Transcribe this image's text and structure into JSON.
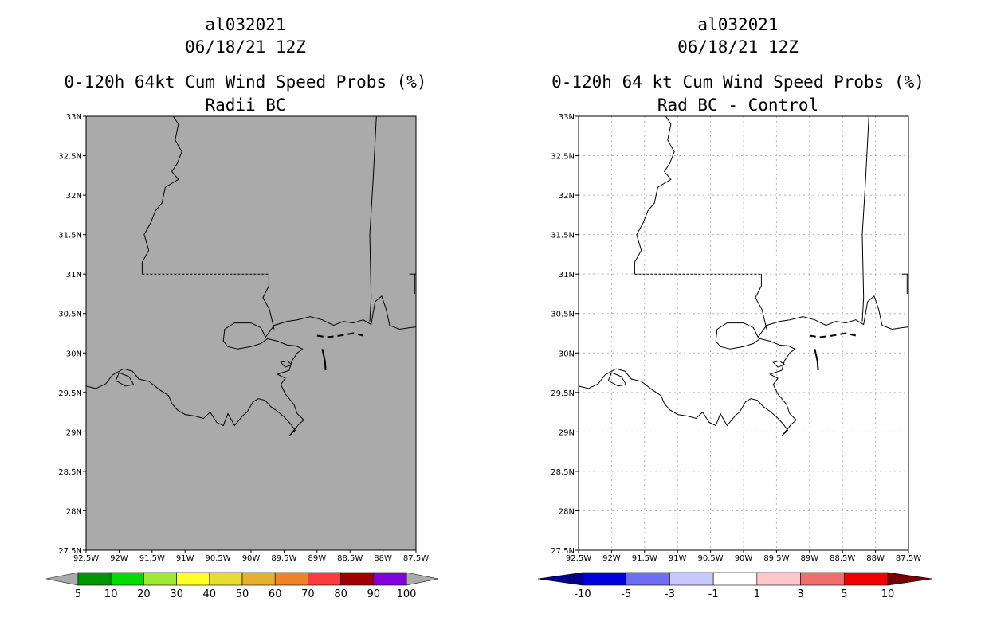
{
  "panels": [
    {
      "id": "left",
      "title_lines": [
        "al032021",
        "06/18/21 12Z",
        "0-120h 64kt Cum Wind Speed Probs (%)",
        "Radii BC"
      ],
      "fill_color": "#aaaaaa",
      "gridlines": false,
      "lat_ticks": [
        "33N",
        "32.5N",
        "32N",
        "31.5N",
        "31N",
        "30.5N",
        "30N",
        "29.5N",
        "29N",
        "28.5N",
        "28N",
        "27.5N"
      ],
      "lon_ticks": [
        "92.5W",
        "92W",
        "91.5W",
        "91W",
        "90.5W",
        "90W",
        "89.5W",
        "89W",
        "88.5W",
        "88W",
        "87.5W"
      ],
      "colorbar": {
        "labels": [
          "5",
          "10",
          "20",
          "30",
          "40",
          "50",
          "60",
          "70",
          "80",
          "90",
          "100"
        ],
        "colors": [
          "#009600",
          "#00dc00",
          "#a0e632",
          "#ffff28",
          "#e6dc32",
          "#e6af2d",
          "#f08228",
          "#fa3c3c",
          "#a00000",
          "#8200dc"
        ],
        "end_low": "#aaaaaa",
        "end_high": "#aaaaaa"
      }
    },
    {
      "id": "right",
      "title_lines": [
        "al032021",
        "06/18/21 12Z",
        "0-120h 64 kt Cum Wind Speed Probs (%)",
        "Rad BC - Control"
      ],
      "fill_color": "#ffffff",
      "gridlines": true,
      "lat_ticks": [
        "33N",
        "32.5N",
        "32N",
        "31.5N",
        "31N",
        "30.5N",
        "30N",
        "29.5N",
        "29N",
        "28.5N",
        "28N",
        "27.5N"
      ],
      "lon_ticks": [
        "92.5W",
        "92W",
        "91.5W",
        "91W",
        "90.5W",
        "90W",
        "89.5W",
        "89W",
        "88.5W",
        "88W",
        "87.5W"
      ],
      "colorbar": {
        "labels": [
          "-10",
          "-5",
          "-3",
          "-1",
          "1",
          "3",
          "5",
          "10"
        ],
        "colors": [
          "#0000dc",
          "#6e6ef0",
          "#c8c8ff",
          "#ffffff",
          "#ffc8c8",
          "#f06e6e",
          "#f00000"
        ],
        "end_low": "#00008c",
        "end_high": "#780000"
      }
    }
  ],
  "map_extent": {
    "lon_min": -92.5,
    "lon_max": -87.5,
    "lat_min": 27.5,
    "lat_max": 33.0
  }
}
